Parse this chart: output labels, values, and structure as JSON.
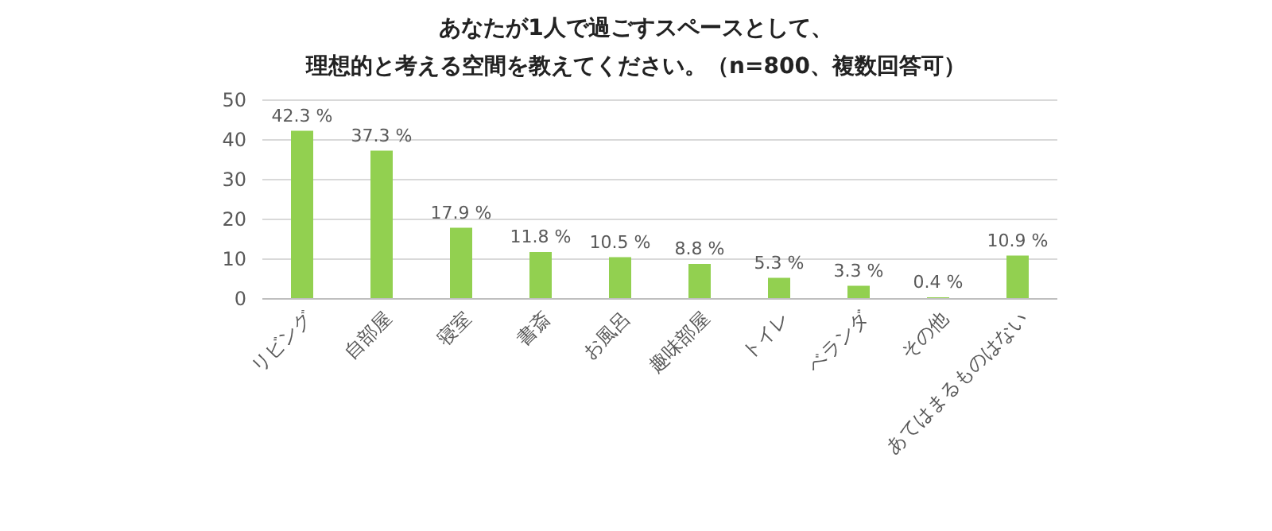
{
  "chart_data": {
    "type": "bar",
    "title": "あなたが1人で過ごすスペースとして、",
    "subtitle": "理想的と考える空間を教えてください。（n=800、複数回答可）",
    "categories": [
      "リビング",
      "自部屋",
      "寝室",
      "書斎",
      "お風呂",
      "趣味部屋",
      "トイレ",
      "ベランダ",
      "その他",
      "あてはまるものはない"
    ],
    "values": [
      42.3,
      37.3,
      17.9,
      11.8,
      10.5,
      8.8,
      5.3,
      3.3,
      0.4,
      10.9
    ],
    "value_labels": [
      "42.3 %",
      "37.3 %",
      "17.9 %",
      "11.8 %",
      "10.5 %",
      "8.8 %",
      "5.3 %",
      "3.3 %",
      "0.4 %",
      "10.9 %"
    ],
    "color": "#92d050",
    "ylim": [
      0,
      50
    ],
    "yticks": [
      0,
      10,
      20,
      30,
      40,
      50
    ],
    "grid": "y"
  }
}
